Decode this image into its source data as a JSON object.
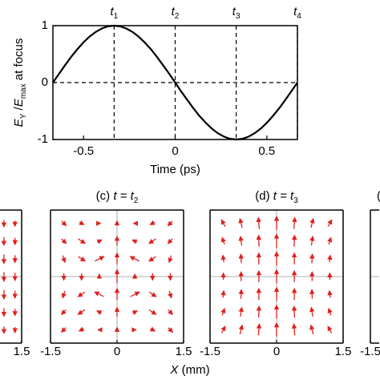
{
  "chart_data": [
    {
      "type": "line",
      "xlabel": "Time (ps)",
      "ylabel": [
        {
          "text": "E",
          "italic": true
        },
        {
          "text": "Y",
          "sub": true
        },
        {
          "text": " /",
          "italic": false
        },
        {
          "text": "E",
          "italic": true
        },
        {
          "text": "max",
          "sub": true
        },
        {
          "text": " at focus",
          "italic": false
        }
      ],
      "xlim": [
        -0.667,
        0.667
      ],
      "ylim": [
        -1,
        1
      ],
      "xticks": [
        -0.5,
        0,
        0.5
      ],
      "yticks": [
        -1,
        0,
        1
      ],
      "zero_line": true,
      "color": "#000000",
      "annotations": [
        {
          "x": -0.333,
          "text": "t",
          "sub": "1"
        },
        {
          "x": 0,
          "text": "t",
          "sub": "2"
        },
        {
          "x": 0.333,
          "text": "t",
          "sub": "3"
        },
        {
          "x": 0.667,
          "text": "t",
          "sub": "4"
        }
      ],
      "x": [
        -0.667,
        -0.633,
        -0.6,
        -0.567,
        -0.533,
        -0.5,
        -0.467,
        -0.433,
        -0.4,
        -0.367,
        -0.333,
        -0.3,
        -0.267,
        -0.233,
        -0.2,
        -0.167,
        -0.133,
        -0.1,
        -0.067,
        -0.033,
        0,
        0.033,
        0.067,
        0.1,
        0.133,
        0.167,
        0.2,
        0.233,
        0.267,
        0.3,
        0.333,
        0.367,
        0.4,
        0.433,
        0.467,
        0.5,
        0.533,
        0.567,
        0.6,
        0.633,
        0.667
      ],
      "values": [
        0,
        0.156,
        0.309,
        0.454,
        0.588,
        0.707,
        0.809,
        0.891,
        0.951,
        0.988,
        1,
        0.988,
        0.951,
        0.891,
        0.809,
        0.707,
        0.588,
        0.454,
        0.309,
        0.156,
        0,
        -0.156,
        -0.309,
        -0.454,
        -0.588,
        -0.707,
        -0.809,
        -0.891,
        -0.951,
        -0.988,
        -1,
        -0.988,
        -0.951,
        -0.891,
        -0.809,
        -0.707,
        -0.588,
        -0.454,
        -0.309,
        -0.156,
        0
      ]
    },
    {
      "type": "quiver",
      "xlabel_var": "X",
      "xlabel_unit": " (mm)",
      "xlim": [
        -1.5,
        1.5
      ],
      "ylim": [
        -1.5,
        1.5
      ],
      "color": "#e02020",
      "panels": [
        {
          "xticks": [
            1.5
          ],
          "grid_x": [
            1.1,
            1.35
          ],
          "grid_y": [
            1.2,
            0.8,
            0.4,
            0,
            -0.4,
            -0.8,
            -1.2
          ],
          "u": [
            [
              0,
              0
            ],
            [
              0,
              0
            ],
            [
              0,
              0
            ],
            [
              0,
              0
            ],
            [
              0,
              0
            ],
            [
              0,
              0
            ],
            [
              0,
              0
            ]
          ],
          "v": [
            [
              -0.15,
              -0.12
            ],
            [
              -0.18,
              -0.15
            ],
            [
              -0.2,
              -0.16
            ],
            [
              -0.2,
              -0.17
            ],
            [
              -0.2,
              -0.16
            ],
            [
              -0.18,
              -0.15
            ],
            [
              -0.15,
              -0.12
            ]
          ]
        },
        {
          "title": "(c) ",
          "title_var": "t = t",
          "title_sub": "2",
          "xticks": [
            -1.5,
            0,
            1.5
          ],
          "grid_x": [
            -1.2,
            -0.8,
            -0.4,
            0,
            0.4,
            0.8,
            1.2
          ],
          "grid_y": [
            1.2,
            0.8,
            0.4,
            0,
            -0.4,
            -0.8,
            -1.2
          ],
          "u": [
            [
              0.1,
              0.1,
              0.05,
              0,
              -0.05,
              -0.1,
              -0.1
            ],
            [
              0.1,
              0.15,
              0.1,
              0,
              -0.1,
              -0.15,
              -0.1
            ],
            [
              0.05,
              0.15,
              0.2,
              0,
              -0.2,
              -0.15,
              -0.05
            ],
            [
              0,
              0,
              0,
              0,
              0,
              0,
              0
            ],
            [
              -0.05,
              -0.15,
              -0.2,
              0,
              0.2,
              0.15,
              0.05
            ],
            [
              -0.1,
              -0.15,
              -0.1,
              0,
              0.1,
              0.15,
              0.1
            ],
            [
              -0.1,
              -0.1,
              -0.05,
              0,
              0.05,
              0.1,
              0.1
            ]
          ],
          "v": [
            [
              -0.1,
              -0.05,
              0,
              0.1,
              0,
              -0.05,
              -0.1
            ],
            [
              -0.1,
              -0.1,
              0.05,
              0.2,
              0.05,
              -0.1,
              -0.1
            ],
            [
              -0.15,
              -0.1,
              0.1,
              0.25,
              0.1,
              -0.1,
              -0.15
            ],
            [
              -0.15,
              -0.15,
              0.1,
              0.3,
              0.1,
              -0.15,
              -0.15
            ],
            [
              -0.15,
              -0.1,
              0.1,
              0.25,
              0.1,
              -0.1,
              -0.15
            ],
            [
              -0.1,
              -0.1,
              0.05,
              0.2,
              0.05,
              -0.1,
              -0.1
            ],
            [
              -0.1,
              -0.05,
              0,
              0.1,
              0,
              -0.05,
              -0.1
            ]
          ]
        },
        {
          "title": "(d) ",
          "title_var": "t = t",
          "title_sub": "3",
          "xticks": [
            -1.5,
            0,
            1.5
          ],
          "grid_x": [
            -1.2,
            -0.8,
            -0.4,
            0,
            0.4,
            0.8,
            1.2
          ],
          "grid_y": [
            1.2,
            0.8,
            0.4,
            0,
            -0.4,
            -0.8,
            -1.2
          ],
          "u": [
            [
              -0.08,
              -0.05,
              -0.02,
              0,
              0.02,
              0.05,
              0.08
            ],
            [
              -0.05,
              -0.03,
              -0.01,
              0,
              0.01,
              0.03,
              0.05
            ],
            [
              -0.02,
              -0.01,
              0,
              0,
              0,
              0.01,
              0.02
            ],
            [
              0,
              0,
              0,
              0,
              0,
              0,
              0
            ],
            [
              0.02,
              0.01,
              0,
              0,
              0,
              -0.01,
              -0.02
            ],
            [
              0.05,
              0.03,
              0.01,
              0,
              -0.01,
              -0.03,
              -0.05
            ],
            [
              0.08,
              0.05,
              0.02,
              0,
              -0.02,
              -0.05,
              -0.08
            ]
          ],
          "v": [
            [
              0.15,
              0.2,
              0.25,
              0.3,
              0.25,
              0.2,
              0.15
            ],
            [
              0.15,
              0.2,
              0.25,
              0.3,
              0.25,
              0.2,
              0.15
            ],
            [
              0.15,
              0.2,
              0.25,
              0.3,
              0.25,
              0.2,
              0.15
            ],
            [
              0.15,
              0.2,
              0.25,
              0.3,
              0.25,
              0.2,
              0.15
            ],
            [
              0.15,
              0.2,
              0.25,
              0.3,
              0.25,
              0.2,
              0.15
            ],
            [
              0.15,
              0.2,
              0.25,
              0.3,
              0.25,
              0.2,
              0.15
            ],
            [
              0.15,
              0.2,
              0.25,
              0.3,
              0.25,
              0.2,
              0.15
            ]
          ]
        },
        {
          "title": "(",
          "xticks": [
            -1.5
          ]
        }
      ]
    }
  ]
}
